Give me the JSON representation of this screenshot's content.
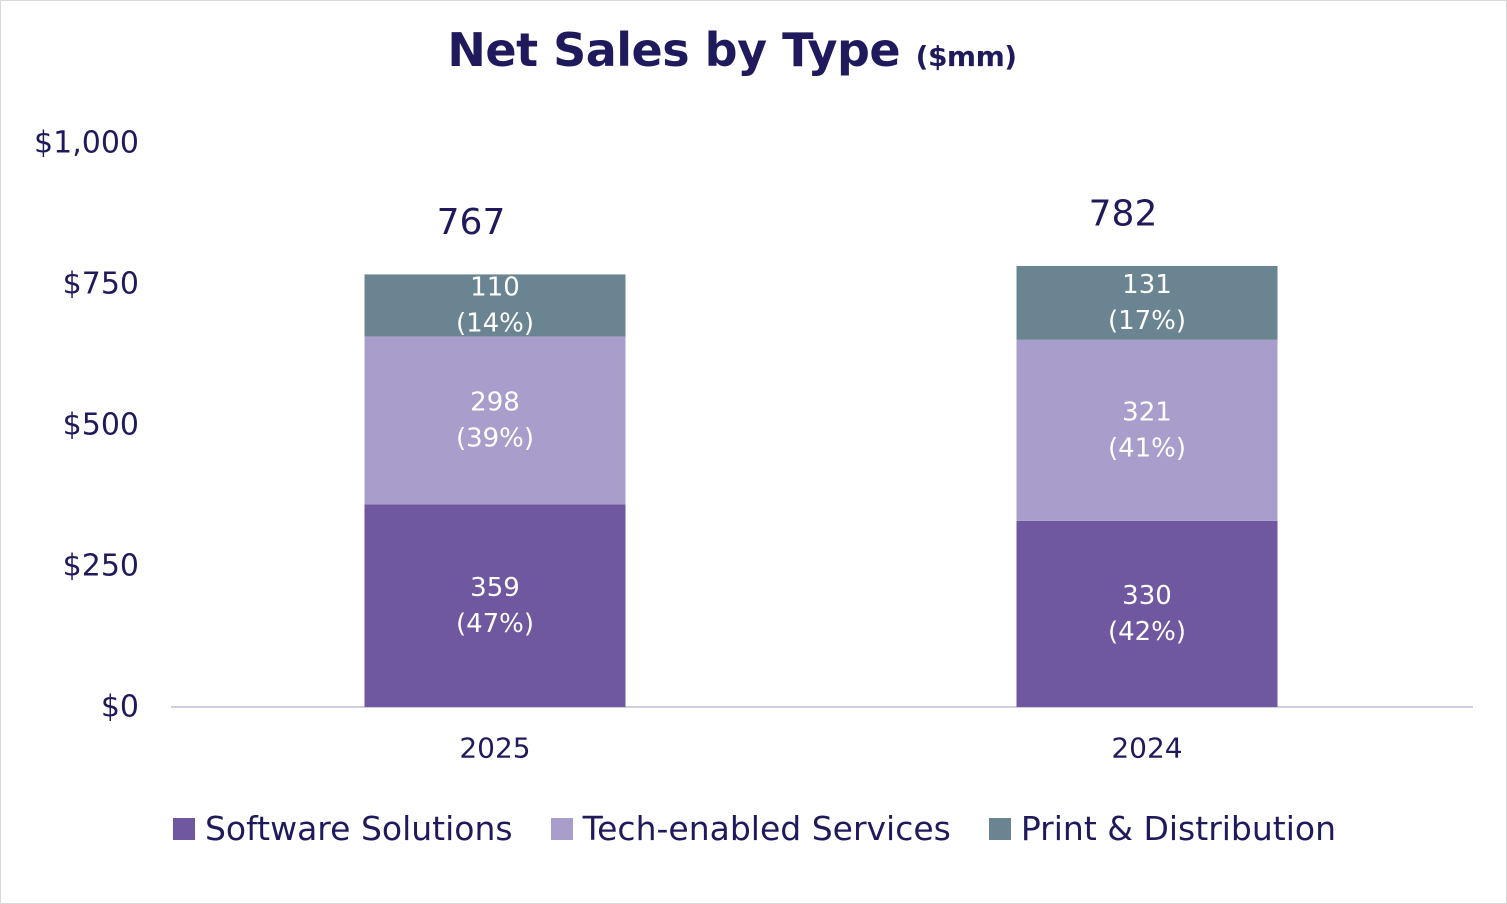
{
  "chart_data": {
    "type": "bar",
    "stacked": true,
    "title": "Net Sales by Type",
    "title_unit": "($mm)",
    "categories": [
      "2025",
      "2024"
    ],
    "series": [
      {
        "name": "Software Solutions",
        "values": [
          359,
          330
        ],
        "labels": [
          "(47%)",
          "(42%)"
        ],
        "color": "#6f58a0"
      },
      {
        "name": "Tech-enabled Services",
        "values": [
          298,
          321
        ],
        "labels": [
          "(39%)",
          "(41%)"
        ],
        "color": "#a99dcb"
      },
      {
        "name": "Print & Distribution",
        "values": [
          110,
          131
        ],
        "labels": [
          "(14%)",
          "(17%)"
        ],
        "color": "#6a8591"
      }
    ],
    "totals": [
      767,
      782
    ],
    "ylim": [
      0,
      1000
    ],
    "yticks": [
      0,
      250,
      500,
      750,
      1000
    ],
    "ytick_labels": [
      "$0",
      "$250",
      "$500",
      "$750",
      "$1,000"
    ],
    "xlabel": "",
    "ylabel": "",
    "legend_position": "bottom",
    "grid": false
  }
}
